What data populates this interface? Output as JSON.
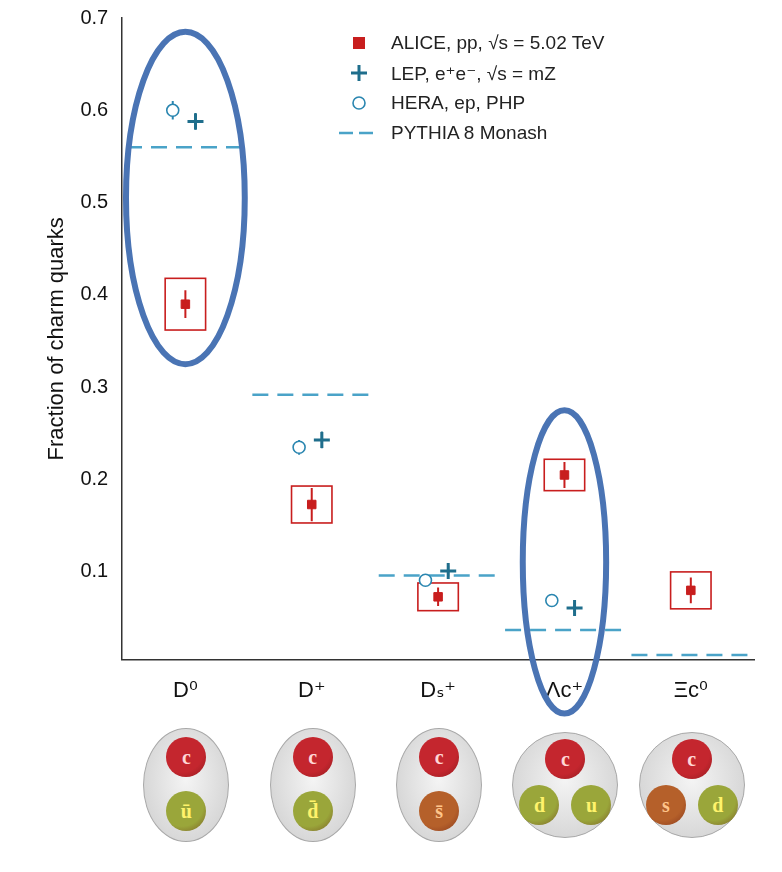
{
  "chart_data": {
    "type": "scatter",
    "y_label": "Fraction of charm quarks",
    "categories": [
      "D⁰",
      "D⁺",
      "Dₛ⁺",
      "Λc⁺",
      "Ξc⁰"
    ],
    "constituents": [
      [
        "c",
        "ū"
      ],
      [
        "c",
        "d̄"
      ],
      [
        "c",
        "s̄"
      ],
      [
        "c",
        "d",
        "u"
      ],
      [
        "c",
        "s",
        "d"
      ]
    ],
    "series": [
      {
        "name": "ALICE, pp, √s = 5.02 TeV",
        "color": "#c81e1e",
        "marker": "square",
        "values": [
          0.39,
          0.173,
          0.073,
          0.205,
          0.08
        ],
        "errors": [
          0.015,
          0.018,
          0.01,
          0.014,
          0.014
        ],
        "syst_errors": [
          0.028,
          0.02,
          0.015,
          0.017,
          0.02
        ]
      },
      {
        "name": "LEP, e⁺e⁻, √s = mZ",
        "color": "#1f6e8c",
        "marker": "plus",
        "values": [
          0.588,
          0.243,
          0.101,
          0.061,
          null
        ],
        "errors": [
          0.009,
          0.009,
          0.006,
          0.005,
          null
        ]
      },
      {
        "name": "HERA, ep, PHP",
        "color": "#2a86b0",
        "marker": "circle_open",
        "values": [
          0.6,
          0.235,
          0.091,
          0.069,
          null
        ],
        "errors": [
          0.01,
          0.008,
          0.004,
          0.007,
          null
        ]
      },
      {
        "name": "PYTHIA 8 Monash",
        "color": "#4aa3c8",
        "line_style": "dashed",
        "values": [
          0.56,
          0.292,
          0.096,
          0.037,
          0.01
        ]
      }
    ],
    "ylim": [
      0.005,
      0.7
    ],
    "yticks": [
      0.1,
      0.2,
      0.3,
      0.4,
      0.5,
      0.6,
      0.7
    ],
    "grid": false,
    "legend": "upper right"
  }
}
